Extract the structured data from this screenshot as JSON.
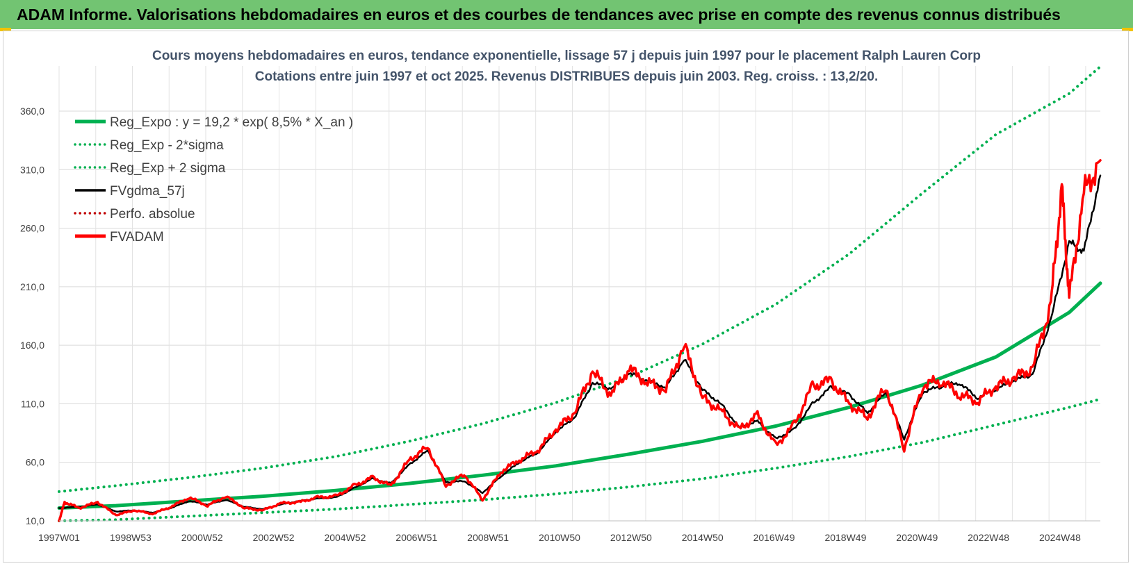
{
  "banner": {
    "text": "ADAM Informe. Valorisations hebdomadaires en euros et des courbes de tendances avec prise en compte des revenus connus distribués",
    "background": "#72c472",
    "corner_color": "#f2c200"
  },
  "chart_data": {
    "type": "line",
    "title": "Cours moyens hebdomadaires en euros, tendance exponentielle, lissage 57 j depuis juin 1997 pour le placement Ralph Lauren Corp",
    "subtitle": "Cotations entre juin 1997 et oct 2025. Revenus DISTRIBUES depuis juin 2003. Reg. croiss. : 13,2/20.",
    "xlabel": "",
    "ylabel": "",
    "xlim": [
      1997.45,
      2025.85
    ],
    "ylim": [
      10,
      400
    ],
    "y_ticks": [
      "10,0",
      "60,0",
      "110,0",
      "160,0",
      "210,0",
      "260,0",
      "310,0",
      "360,0"
    ],
    "y_tick_values": [
      10,
      60,
      110,
      160,
      210,
      260,
      310,
      360
    ],
    "x_ticks": [
      "1997W01",
      "1998W53",
      "2000W52",
      "2002W52",
      "2004W52",
      "2006W51",
      "2008W51",
      "2010W50",
      "2012W50",
      "2014W50",
      "2016W49",
      "2018W49",
      "2020W49",
      "2022W48",
      "2024W48"
    ],
    "x_tick_years": [
      1997.45,
      1999.4,
      2001.35,
      2003.3,
      2005.25,
      2007.2,
      2009.15,
      2011.1,
      2013.05,
      2015.0,
      2016.95,
      2018.9,
      2020.85,
      2022.8,
      2024.75
    ],
    "grid": true,
    "legend_position": "top-left",
    "series": [
      {
        "name": "Reg_Expo : y = 19,2 * exp( 8,5% *  X_an )",
        "color": "#00b050",
        "style": "solid",
        "x": [
          1997.45,
          1999,
          2001,
          2003,
          2005,
          2007,
          2009,
          2011,
          2013,
          2015,
          2017,
          2019,
          2021,
          2023,
          2025,
          2025.85
        ],
        "values": [
          21,
          23,
          27,
          31,
          36,
          42,
          49,
          57,
          67,
          78,
          91,
          107,
          126,
          150,
          188,
          213
        ]
      },
      {
        "name": "Reg_Exp - 2*sigma",
        "color": "#00b050",
        "style": "dotted",
        "x": [
          1997.45,
          1999,
          2001,
          2003,
          2005,
          2007,
          2009,
          2011,
          2013,
          2015,
          2017,
          2019,
          2021,
          2023,
          2025,
          2025.85
        ],
        "values": [
          10,
          11,
          14,
          17,
          20,
          24,
          28,
          33,
          39,
          46,
          55,
          65,
          77,
          92,
          107,
          114
        ]
      },
      {
        "name": "Reg_Exp + 2 sigma",
        "color": "#00b050",
        "style": "dotted",
        "x": [
          1997.45,
          1999,
          2001,
          2003,
          2005,
          2007,
          2009,
          2011,
          2013,
          2015,
          2017,
          2019,
          2021,
          2023,
          2025,
          2025.85
        ],
        "values": [
          35,
          40,
          47,
          55,
          65,
          78,
          93,
          111,
          133,
          161,
          195,
          238,
          290,
          340,
          375,
          398
        ]
      },
      {
        "name": "FVgdma_57j",
        "color": "#000000",
        "style": "solid",
        "x": [
          1997.45,
          1998,
          1998.5,
          1999,
          1999.5,
          2000,
          2000.5,
          2001,
          2001.5,
          2002,
          2002.5,
          2003,
          2003.5,
          2004,
          2004.5,
          2005,
          2005.5,
          2006,
          2006.5,
          2007,
          2007.5,
          2008,
          2008.5,
          2009,
          2009.5,
          2010,
          2010.5,
          2011,
          2011.5,
          2012,
          2012.5,
          2013,
          2013.5,
          2014,
          2014.5,
          2015,
          2015.5,
          2016,
          2016.5,
          2017,
          2017.5,
          2018,
          2018.5,
          2019,
          2019.5,
          2020,
          2020.5,
          2021,
          2021.5,
          2022,
          2022.5,
          2023,
          2023.5,
          2024,
          2024.5,
          2025,
          2025.4,
          2025.85
        ],
        "values": [
          21,
          22,
          24,
          18,
          19,
          17,
          21,
          27,
          24,
          28,
          22,
          20,
          24,
          27,
          29,
          30,
          38,
          46,
          42,
          58,
          70,
          43,
          44,
          34,
          48,
          60,
          68,
          86,
          98,
          128,
          123,
          136,
          130,
          124,
          148,
          122,
          110,
          90,
          95,
          80,
          88,
          110,
          124,
          118,
          102,
          120,
          80,
          120,
          125,
          128,
          115,
          122,
          130,
          135,
          182,
          248,
          240,
          305
        ]
      },
      {
        "name": "Perfo. absolue",
        "color": "#c00000",
        "style": "dotted",
        "x": [],
        "values": []
      },
      {
        "name": "FVADAM",
        "color": "#ff0000",
        "style": "solid",
        "x": [
          1997.45,
          1997.6,
          1998,
          1998.5,
          1999,
          1999.5,
          2000,
          2000.5,
          2001,
          2001.5,
          2002,
          2002.5,
          2003,
          2003.5,
          2004,
          2004.5,
          2005,
          2005.5,
          2006,
          2006.5,
          2007,
          2007.5,
          2008,
          2008.5,
          2009,
          2009.5,
          2010,
          2010.5,
          2011,
          2011.5,
          2012,
          2012.5,
          2013,
          2013.5,
          2014,
          2014.5,
          2015,
          2015.5,
          2016,
          2016.5,
          2017,
          2017.5,
          2018,
          2018.5,
          2019,
          2019.5,
          2020,
          2020.5,
          2021,
          2021.5,
          2022,
          2022.5,
          2023,
          2023.5,
          2024,
          2024.5,
          2024.8,
          2025,
          2025.4,
          2025.85
        ],
        "values": [
          10,
          26,
          21,
          26,
          15,
          19,
          16,
          22,
          30,
          23,
          31,
          21,
          19,
          25,
          26,
          30,
          31,
          40,
          47,
          40,
          62,
          73,
          40,
          50,
          28,
          52,
          62,
          70,
          88,
          102,
          138,
          118,
          140,
          128,
          122,
          160,
          115,
          104,
          88,
          100,
          74,
          92,
          125,
          130,
          110,
          98,
          125,
          72,
          126,
          130,
          118,
          112,
          125,
          132,
          140,
          195,
          295,
          200,
          290,
          318
        ]
      }
    ]
  }
}
